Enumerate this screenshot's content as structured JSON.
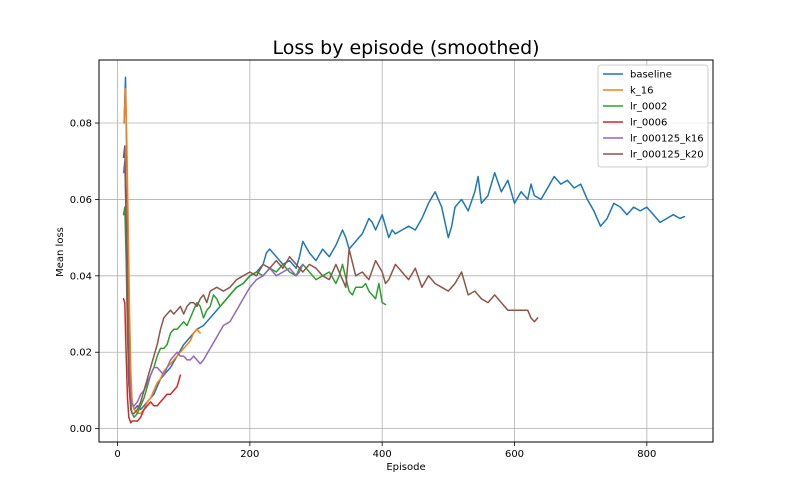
{
  "chart_data": {
    "type": "line",
    "title": "Loss by episode (smoothed)",
    "xlabel": "Episode",
    "ylabel": "Mean loss",
    "xlim": [
      -28,
      900
    ],
    "ylim": [
      -0.0035,
      0.0965
    ],
    "xticks": [
      0,
      200,
      400,
      600,
      800
    ],
    "xtick_labels": [
      "0",
      "200",
      "400",
      "600",
      "800"
    ],
    "yticks": [
      0.0,
      0.02,
      0.04,
      0.06,
      0.08
    ],
    "ytick_labels": [
      "0.00",
      "0.02",
      "0.04",
      "0.06",
      "0.08"
    ],
    "grid": true,
    "legend_position": "top-right",
    "series": [
      {
        "name": "baseline",
        "color": "#1f77b4",
        "x": [
          10,
          12,
          14,
          16,
          18,
          20,
          22,
          25,
          30,
          35,
          40,
          45,
          50,
          55,
          60,
          65,
          70,
          75,
          80,
          90,
          100,
          110,
          120,
          130,
          140,
          150,
          160,
          170,
          180,
          190,
          200,
          210,
          220,
          225,
          230,
          240,
          250,
          260,
          270,
          275,
          280,
          290,
          300,
          310,
          320,
          330,
          340,
          345,
          350,
          360,
          370,
          380,
          385,
          390,
          400,
          410,
          415,
          420,
          430,
          440,
          450,
          460,
          470,
          480,
          490,
          500,
          505,
          510,
          520,
          530,
          540,
          545,
          550,
          560,
          570,
          580,
          590,
          600,
          610,
          620,
          625,
          630,
          640,
          650,
          660,
          670,
          680,
          690,
          700,
          710,
          720,
          730,
          740,
          750,
          760,
          770,
          780,
          790,
          800,
          810,
          820,
          830,
          840,
          850,
          857
        ],
        "y": [
          0.08,
          0.092,
          0.07,
          0.045,
          0.025,
          0.012,
          0.007,
          0.005,
          0.006,
          0.005,
          0.006,
          0.007,
          0.008,
          0.009,
          0.011,
          0.013,
          0.014,
          0.015,
          0.016,
          0.019,
          0.022,
          0.024,
          0.026,
          0.027,
          0.029,
          0.031,
          0.033,
          0.035,
          0.037,
          0.038,
          0.04,
          0.041,
          0.043,
          0.046,
          0.047,
          0.045,
          0.043,
          0.044,
          0.042,
          0.045,
          0.049,
          0.046,
          0.044,
          0.047,
          0.045,
          0.048,
          0.052,
          0.05,
          0.047,
          0.049,
          0.051,
          0.055,
          0.054,
          0.052,
          0.056,
          0.05,
          0.052,
          0.051,
          0.052,
          0.053,
          0.052,
          0.055,
          0.059,
          0.062,
          0.058,
          0.05,
          0.053,
          0.058,
          0.06,
          0.057,
          0.062,
          0.066,
          0.059,
          0.061,
          0.067,
          0.062,
          0.065,
          0.059,
          0.062,
          0.06,
          0.064,
          0.061,
          0.06,
          0.063,
          0.066,
          0.064,
          0.065,
          0.063,
          0.064,
          0.06,
          0.057,
          0.053,
          0.055,
          0.059,
          0.058,
          0.056,
          0.058,
          0.057,
          0.058,
          0.056,
          0.054,
          0.055,
          0.056,
          0.055,
          0.0555
        ]
      },
      {
        "name": "k_16",
        "color": "#ff7f0e",
        "x": [
          10,
          12,
          14,
          16,
          18,
          20,
          22,
          25,
          30,
          35,
          40,
          45,
          50,
          55,
          60,
          65,
          70,
          75,
          80,
          85,
          90,
          95,
          100,
          105,
          110,
          115,
          120,
          125
        ],
        "y": [
          0.08,
          0.089,
          0.075,
          0.055,
          0.032,
          0.015,
          0.007,
          0.005,
          0.004,
          0.004,
          0.005,
          0.007,
          0.008,
          0.01,
          0.012,
          0.013,
          0.015,
          0.016,
          0.017,
          0.018,
          0.019,
          0.02,
          0.021,
          0.022,
          0.023,
          0.025,
          0.026,
          0.025
        ]
      },
      {
        "name": "lr_0002",
        "color": "#2ca02c",
        "x": [
          9,
          11,
          13,
          15,
          17,
          20,
          22,
          25,
          30,
          35,
          40,
          45,
          50,
          55,
          60,
          65,
          70,
          75,
          80,
          85,
          90,
          95,
          100,
          105,
          110,
          115,
          120,
          125,
          130,
          135,
          140,
          145,
          150,
          155,
          160,
          170,
          180,
          190,
          200,
          210,
          220,
          230,
          240,
          250,
          260,
          270,
          275,
          280,
          290,
          300,
          310,
          320,
          330,
          335,
          340,
          350,
          355,
          360,
          370,
          375,
          380,
          390,
          395,
          400,
          405
        ],
        "y": [
          0.056,
          0.058,
          0.045,
          0.025,
          0.012,
          0.006,
          0.004,
          0.003,
          0.004,
          0.006,
          0.008,
          0.011,
          0.014,
          0.016,
          0.019,
          0.021,
          0.021,
          0.022,
          0.025,
          0.026,
          0.026,
          0.027,
          0.028,
          0.027,
          0.029,
          0.031,
          0.033,
          0.032,
          0.029,
          0.031,
          0.032,
          0.035,
          0.034,
          0.032,
          0.033,
          0.035,
          0.037,
          0.038,
          0.04,
          0.041,
          0.04,
          0.042,
          0.041,
          0.043,
          0.041,
          0.04,
          0.042,
          0.043,
          0.041,
          0.039,
          0.04,
          0.041,
          0.038,
          0.04,
          0.043,
          0.036,
          0.035,
          0.037,
          0.037,
          0.038,
          0.036,
          0.034,
          0.038,
          0.033,
          0.0325
        ]
      },
      {
        "name": "lr_0006",
        "color": "#d62728",
        "x": [
          9,
          11,
          13,
          15,
          17,
          20,
          22,
          25,
          30,
          35,
          40,
          45,
          50,
          55,
          60,
          65,
          70,
          75,
          80,
          85,
          90,
          95
        ],
        "y": [
          0.034,
          0.033,
          0.02,
          0.008,
          0.003,
          0.0015,
          0.002,
          0.002,
          0.002,
          0.003,
          0.005,
          0.006,
          0.007,
          0.006,
          0.006,
          0.007,
          0.008,
          0.009,
          0.009,
          0.01,
          0.011,
          0.014
        ]
      },
      {
        "name": "lr_000125_k16",
        "color": "#9467bd",
        "x": [
          9,
          11,
          13,
          15,
          17,
          20,
          22,
          25,
          30,
          35,
          40,
          45,
          50,
          55,
          60,
          65,
          70,
          75,
          80,
          85,
          90,
          95,
          100,
          105,
          110,
          115,
          120,
          125,
          130,
          140,
          150,
          160,
          170,
          180,
          190,
          200,
          210,
          220,
          230,
          240,
          250,
          260,
          270,
          275,
          280
        ],
        "y": [
          0.067,
          0.07,
          0.055,
          0.035,
          0.018,
          0.008,
          0.006,
          0.006,
          0.007,
          0.009,
          0.01,
          0.012,
          0.014,
          0.016,
          0.016,
          0.015,
          0.014,
          0.016,
          0.018,
          0.019,
          0.02,
          0.019,
          0.019,
          0.018,
          0.018,
          0.019,
          0.018,
          0.017,
          0.018,
          0.021,
          0.024,
          0.027,
          0.028,
          0.031,
          0.034,
          0.037,
          0.039,
          0.04,
          0.042,
          0.04,
          0.041,
          0.042,
          0.04,
          0.041,
          0.043
        ]
      },
      {
        "name": "lr_000125_k20",
        "color": "#8c564b",
        "x": [
          9,
          11,
          13,
          15,
          17,
          20,
          22,
          25,
          30,
          35,
          40,
          45,
          50,
          55,
          60,
          65,
          70,
          75,
          80,
          85,
          90,
          95,
          100,
          105,
          110,
          115,
          120,
          125,
          130,
          135,
          140,
          150,
          160,
          170,
          180,
          190,
          200,
          210,
          220,
          230,
          240,
          250,
          260,
          270,
          280,
          290,
          300,
          310,
          320,
          330,
          340,
          345,
          350,
          360,
          370,
          380,
          390,
          400,
          405,
          410,
          420,
          430,
          440,
          450,
          460,
          470,
          480,
          490,
          500,
          510,
          520,
          530,
          540,
          550,
          560,
          570,
          580,
          590,
          600,
          610,
          620,
          625,
          630,
          635
        ],
        "y": [
          0.071,
          0.074,
          0.055,
          0.03,
          0.012,
          0.005,
          0.004,
          0.004,
          0.005,
          0.007,
          0.01,
          0.013,
          0.016,
          0.019,
          0.022,
          0.026,
          0.029,
          0.03,
          0.031,
          0.03,
          0.031,
          0.032,
          0.03,
          0.032,
          0.033,
          0.033,
          0.032,
          0.034,
          0.035,
          0.033,
          0.036,
          0.037,
          0.036,
          0.037,
          0.039,
          0.04,
          0.041,
          0.04,
          0.043,
          0.042,
          0.044,
          0.042,
          0.045,
          0.043,
          0.041,
          0.043,
          0.042,
          0.04,
          0.039,
          0.043,
          0.039,
          0.037,
          0.047,
          0.04,
          0.041,
          0.039,
          0.044,
          0.041,
          0.038,
          0.039,
          0.043,
          0.041,
          0.039,
          0.042,
          0.037,
          0.04,
          0.038,
          0.037,
          0.036,
          0.038,
          0.041,
          0.035,
          0.036,
          0.034,
          0.033,
          0.035,
          0.033,
          0.031,
          0.031,
          0.031,
          0.031,
          0.029,
          0.028,
          0.029
        ]
      }
    ]
  }
}
